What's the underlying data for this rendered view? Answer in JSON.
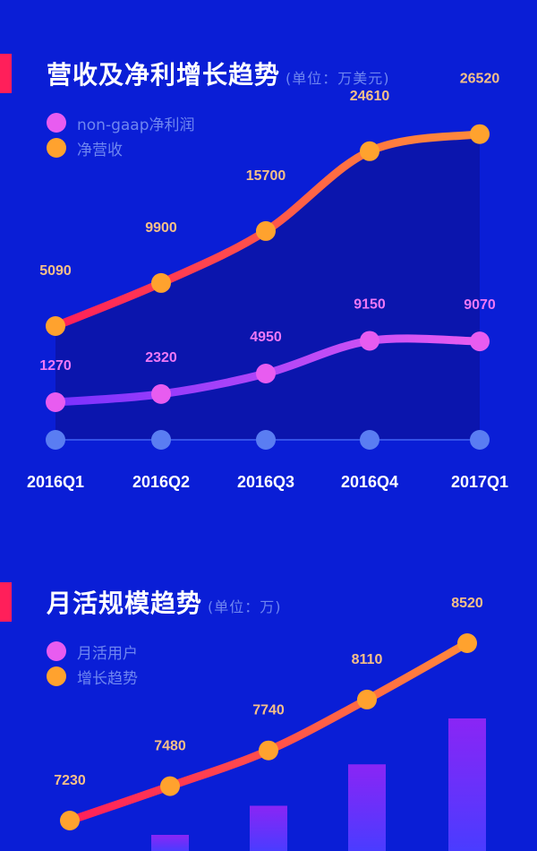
{
  "chart_data": [
    {
      "type": "line",
      "title": "营收及净利增长趋势",
      "unit": "(单位：万美元)",
      "categories": [
        "2016Q1",
        "2016Q2",
        "2016Q3",
        "2016Q4",
        "2017Q1"
      ],
      "series": [
        {
          "name": "non-gaap净利润",
          "values": [
            1270,
            2320,
            4950,
            9150,
            9070
          ],
          "color": "#e85cf0",
          "label_color": "#ee78f5"
        },
        {
          "name": "净营收",
          "values": [
            5090,
            9900,
            15700,
            24610,
            26520
          ],
          "color": "#ffa22e",
          "label_color": "#f6c088"
        }
      ],
      "legend": "top-left",
      "grid": false
    },
    {
      "type": "bar+line",
      "title": "月活规模趋势",
      "unit": "(单位：万)",
      "series": [
        {
          "name": "月活用户",
          "type": "bar",
          "values": [
            7230,
            7480,
            7740,
            8110,
            8520
          ],
          "color": "#7a30ff",
          "legend_color": "#e85cf0"
        },
        {
          "name": "增长趋势",
          "type": "line",
          "values": [
            7230,
            7480,
            7740,
            8110,
            8520
          ],
          "color": "#ffa22e",
          "label_color": "#f6c088"
        }
      ],
      "legend": "top-left",
      "grid": false
    }
  ],
  "colors": {
    "background": "#0a1ed6",
    "accent": "#ff1f5a"
  }
}
